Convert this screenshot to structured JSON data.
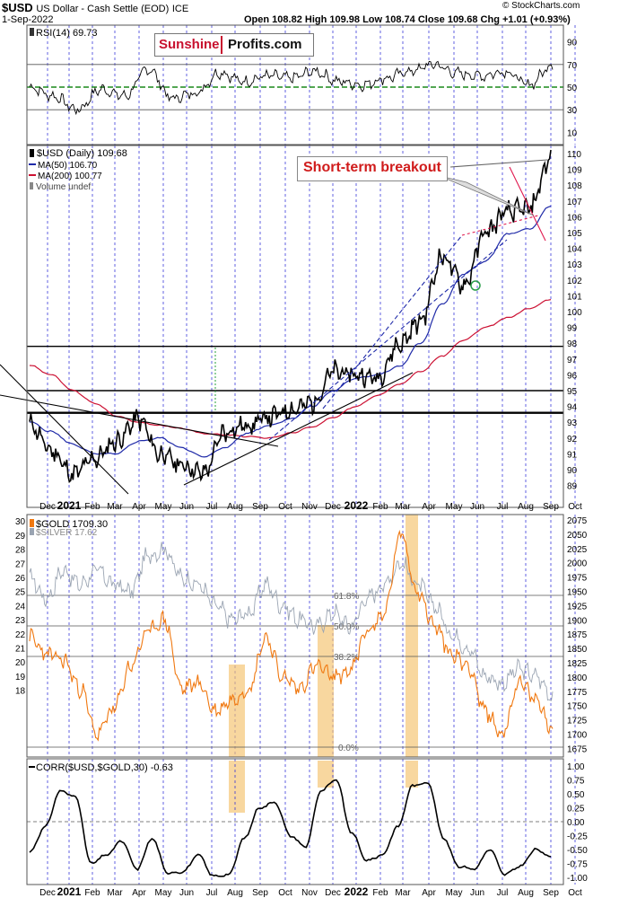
{
  "header": {
    "symbol": "$USD",
    "name": "US Dollar - Cash Settle (EOD)",
    "exchange": "ICE",
    "date": "1-Sep-2022",
    "ohlc_text": "Open 108.82  High 109.98  Low 108.74  Close 109.68  Chg +1.01 (+0.93%)",
    "copyright": "© StockCharts.com"
  },
  "logo": {
    "part1": "Sunshine",
    "part2": "Profits.com"
  },
  "annotation": "Short-term breakout",
  "colors": {
    "price": "#000000",
    "ma50": "#1f2aa8",
    "ma200": "#cc1133",
    "gold": "#f07810",
    "silver": "#9aa4b2",
    "corr": "#000000",
    "highlight": "#f5c26b",
    "rsi_mid": "#1a8a1a",
    "month_grid": "#2b2bd6",
    "trend_red": "#e0194f"
  },
  "x_axis": {
    "months": [
      "Dec",
      "2021",
      "Feb",
      "Mar",
      "Apr",
      "May",
      "Jun",
      "Jul",
      "Aug",
      "Sep",
      "Oct",
      "Nov",
      "Dec",
      "2022",
      "Feb",
      "Mar",
      "Apr",
      "May",
      "Jun",
      "Jul",
      "Aug",
      "Sep",
      "Oct"
    ],
    "bold_years": [
      "2021",
      "2022"
    ]
  },
  "chart_data": [
    {
      "type": "line",
      "panel": "RSI",
      "label": "RSI(14) 69.73",
      "ylim": [
        0,
        100
      ],
      "ticks": [
        10,
        30,
        50,
        70,
        90
      ],
      "reference_lines": [
        30,
        50,
        70
      ],
      "months_x": [
        "Nov",
        "Dec",
        "Jan",
        "Feb",
        "Mar",
        "Apr",
        "May",
        "Jun",
        "Jul",
        "Aug",
        "Sep",
        "Oct",
        "Nov",
        "Dec",
        "Jan",
        "Feb",
        "Mar",
        "Apr",
        "May",
        "Jun",
        "Jul",
        "Aug",
        "Sep"
      ],
      "values": [
        50,
        42,
        30,
        48,
        42,
        66,
        40,
        45,
        63,
        55,
        60,
        58,
        64,
        55,
        52,
        58,
        64,
        70,
        62,
        60,
        64,
        52,
        69.73
      ]
    },
    {
      "type": "line",
      "panel": "USD",
      "ylim": [
        88.5,
        110.5
      ],
      "ticks": [
        89,
        90,
        91,
        92,
        93,
        94,
        95,
        96,
        97,
        98,
        99,
        100,
        101,
        102,
        103,
        104,
        105,
        106,
        107,
        108,
        109,
        110
      ],
      "horizontal_levels": [
        93.6,
        95.0,
        97.8
      ],
      "series": [
        {
          "name": "$USD (Daily) 109.68",
          "values": [
            92.9,
            91.2,
            89.7,
            90.7,
            91.8,
            93.2,
            91.0,
            90.3,
            89.8,
            92.4,
            92.8,
            93.3,
            93.8,
            94.2,
            96.2,
            96.0,
            95.8,
            97.9,
            99.4,
            103.5,
            101.7,
            105.0,
            106.3,
            106.5,
            109.68
          ]
        },
        {
          "name": "MA(50) 106.70",
          "values": [
            93.0,
            92.4,
            91.6,
            91.0,
            91.0,
            91.8,
            92.0,
            91.4,
            90.8,
            91.4,
            92.3,
            92.8,
            93.2,
            94.0,
            95.0,
            95.8,
            96.0,
            96.5,
            98.0,
            100.5,
            102.4,
            103.2,
            104.9,
            105.2,
            106.7
          ]
        },
        {
          "name": "MA(200) 100.77",
          "values": [
            96.6,
            96.0,
            95.0,
            94.2,
            93.4,
            93.0,
            92.8,
            92.6,
            92.3,
            92.2,
            92.1,
            92.0,
            92.3,
            92.7,
            93.3,
            94.0,
            94.7,
            95.4,
            96.2,
            97.2,
            98.2,
            99.0,
            99.6,
            100.2,
            100.77
          ]
        }
      ],
      "volume_label": "Volume undef"
    },
    {
      "type": "line",
      "panel": "GOLD_SILVER",
      "series": [
        {
          "name": "$GOLD 1709.30",
          "axis": "right",
          "values": [
            1870,
            1840,
            1830,
            1780,
            1700,
            1745,
            1820,
            1880,
            1900,
            1780,
            1790,
            1740,
            1760,
            1780,
            1870,
            1800,
            1780,
            1820,
            1800,
            1810,
            1880,
            1910,
            2050,
            1950,
            1890,
            1840,
            1820,
            1740,
            1700,
            1790,
            1760,
            1709.3
          ]
        },
        {
          "name": "$SILVER 17.62",
          "axis": "left",
          "values": [
            26,
            24.5,
            26.5,
            25.5,
            26.5,
            25.5,
            25,
            27.5,
            28,
            26,
            25.5,
            24,
            23,
            23.5,
            25.5,
            24,
            23,
            22.5,
            23.5,
            22.5,
            24.5,
            25.5,
            27,
            25.5,
            24,
            22,
            21,
            19,
            18.5,
            19.5,
            19,
            17.62
          ]
        }
      ],
      "left_ticks": [
        18,
        19,
        20,
        21,
        22,
        23,
        24,
        25,
        26,
        27,
        28,
        29,
        30
      ],
      "right_ticks": [
        1675,
        1700,
        1725,
        1750,
        1775,
        1800,
        1825,
        1850,
        1875,
        1900,
        1925,
        1950,
        1975,
        2000,
        2025,
        2050,
        2075
      ],
      "fib_labels": [
        "61.8%",
        "50.0%",
        "38.2%",
        "0.0%"
      ]
    },
    {
      "type": "line",
      "panel": "CORR",
      "label": "CORR($USD,$GOLD,30) -0.63",
      "ylim": [
        -1.0,
        1.0
      ],
      "ticks": [
        -1.0,
        -0.75,
        -0.5,
        -0.25,
        0.0,
        0.25,
        0.5,
        0.75,
        1.0
      ],
      "tick_labels": [
        "-1.00",
        "-0.75",
        "-0.50",
        "-0.25",
        "0.00",
        "0.25",
        "0.50",
        "0.75",
        "1.00"
      ],
      "values": [
        -0.55,
        -0.1,
        0.55,
        0.45,
        -0.75,
        -0.6,
        -0.35,
        -0.85,
        -0.3,
        -0.92,
        -0.9,
        -0.6,
        -0.98,
        -0.95,
        -0.3,
        0.25,
        0.35,
        -0.25,
        -0.45,
        0.55,
        0.75,
        -0.2,
        -0.7,
        -0.6,
        -0.1,
        0.65,
        0.7,
        -0.3,
        -0.8,
        -0.85,
        -0.5,
        -0.95,
        -0.8,
        -0.5,
        -0.63
      ]
    }
  ]
}
